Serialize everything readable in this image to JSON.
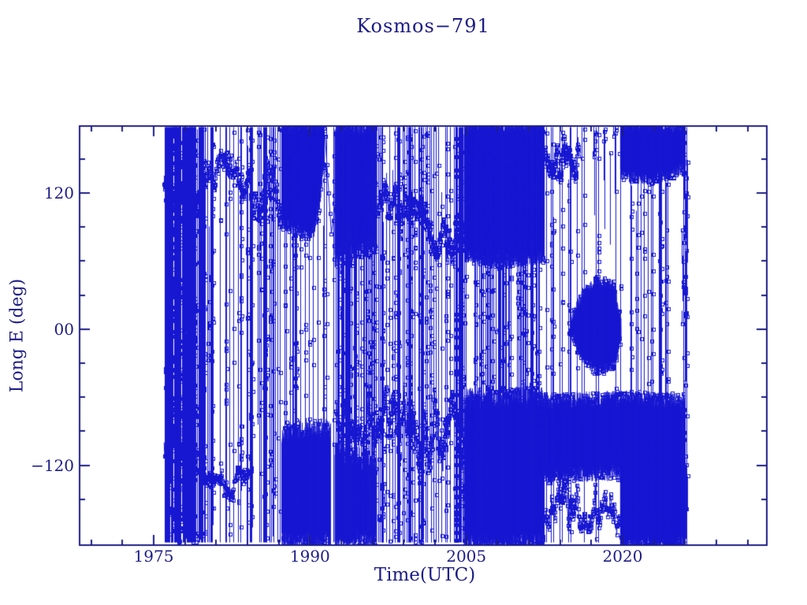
{
  "chart_data": {
    "type": "scatter",
    "title": "Kosmos−791",
    "xlabel": "Time(UTC)",
    "ylabel": "Long E (deg)",
    "xlim": [
      1967.89,
      2033.84
    ],
    "ylim": [
      -190.4,
      179.0
    ],
    "x_major_ticks": [
      {
        "value": 1975,
        "label": "1975"
      },
      {
        "value": 1990,
        "label": "1990"
      },
      {
        "value": 2005,
        "label": "2005"
      },
      {
        "value": 2020,
        "label": "2020"
      }
    ],
    "x_minor_tick_years": [
      1969,
      1972,
      1978,
      1981,
      1984,
      1987,
      1993,
      1996,
      1999,
      2002,
      2008,
      2011,
      2014,
      2017,
      2023,
      2026,
      2029,
      2032
    ],
    "y_major_ticks": [
      {
        "value": 120,
        "label": "120"
      },
      {
        "value": 0,
        "label": "00"
      },
      {
        "value": -120,
        "label": "−120"
      }
    ],
    "y_minor_tick_values": [
      150,
      90,
      60,
      30,
      -30,
      -60,
      -90,
      -150
    ],
    "grid": false,
    "legend": null,
    "colors": {
      "background": "#ffffff",
      "axis": "#1d1d87",
      "data": "#1717d2"
    },
    "marker": {
      "shape": "open-square",
      "size": 4
    },
    "seed": 791,
    "features": [
      {
        "kind": "stripes",
        "desc": "1976-1979.7 rapid drift, dense full-range longitude wraps",
        "t0": 1976.0,
        "t1": 1979.7,
        "n": 85,
        "partial": 0.25
      },
      {
        "kind": "walk",
        "desc": "1976-1979.7 cluster near 112-124E",
        "t0": 1976.0,
        "t1": 1979.7,
        "c0": 124,
        "c1": 112,
        "spread": 16,
        "step": 0.025
      },
      {
        "kind": "walk",
        "desc": "1976-1979.2 cluster near 92-102W",
        "t0": 1976.0,
        "t1": 1979.2,
        "c0": -92,
        "c1": -102,
        "spread": 26,
        "step": 0.025
      },
      {
        "kind": "walk",
        "desc": "1976-1977.6 cluster near 165-172W",
        "t0": 1976.2,
        "t1": 1977.6,
        "c0": -165,
        "c1": -172,
        "spread": 10,
        "step": 0.03
      },
      {
        "kind": "stripes",
        "desc": "1979.7-1984.3 slow wrap stripes",
        "t0": 1979.7,
        "t1": 1984.3,
        "n": 24,
        "partial": 0.35
      },
      {
        "kind": "walk",
        "desc": "1979.7-1984.3 cluster near 130-142E",
        "t0": 1979.7,
        "t1": 1984.3,
        "c0": 142,
        "c1": 130,
        "spread": 20,
        "step": 0.03
      },
      {
        "kind": "walk",
        "desc": "1980-1984.3 cluster near 132-138W",
        "t0": 1979.9,
        "t1": 1984.3,
        "c0": -132,
        "c1": -138,
        "spread": 16,
        "step": 0.035
      },
      {
        "kind": "stripes",
        "desc": "1984.3-1987.3 wrap stripes",
        "t0": 1984.3,
        "t1": 1987.3,
        "n": 20,
        "partial": 0.35
      },
      {
        "kind": "walk",
        "desc": "1984.3-1987.3 scattered 90-150E",
        "t0": 1984.3,
        "t1": 1987.3,
        "c0": 122,
        "c1": 112,
        "spread": 30,
        "step": 0.03
      },
      {
        "kind": "fill",
        "desc": "1987.3-1991.35 libration fill 85E-180E narrowing to V",
        "env": [
          [
            1987.3,
            95,
            178
          ],
          [
            1989.2,
            87,
            178
          ],
          [
            1990.4,
            86,
            178
          ],
          [
            1991.0,
            118,
            178
          ],
          [
            1991.35,
            148,
            178
          ]
        ],
        "step": 0.02,
        "jitter": 7
      },
      {
        "kind": "fill",
        "desc": "1987.3-1992 libration fill 185W-88W",
        "env": [
          [
            1987.3,
            -188,
            -92
          ],
          [
            1990.0,
            -188,
            -86
          ],
          [
            1992.0,
            -188,
            -88
          ]
        ],
        "step": 0.028,
        "jitter": 9
      },
      {
        "kind": "stripes",
        "desc": "1987.3-1991.3 wrap stripes",
        "t0": 1987.3,
        "t1": 1991.3,
        "n": 16,
        "partial": 0.3
      },
      {
        "kind": "stripes",
        "desc": "1991.35-1992.3 quiet period, few wraps",
        "t0": 1991.35,
        "t1": 1992.3,
        "n": 4,
        "partial": 0.5
      },
      {
        "kind": "curve",
        "desc": "1991.4-1993 drift dip to 84E then recovery to 145E",
        "pts": [
          [
            1991.45,
            170
          ],
          [
            1991.8,
            120
          ],
          [
            1992.05,
            84
          ],
          [
            1992.4,
            108
          ],
          [
            1992.7,
            128
          ],
          [
            1992.95,
            145
          ]
        ]
      },
      {
        "kind": "fill",
        "desc": "1992.4-1996.4 libration fill 62E-180E",
        "env": [
          [
            1992.4,
            62,
            178
          ],
          [
            1994.5,
            70,
            178
          ],
          [
            1996.4,
            76,
            178
          ]
        ],
        "step": 0.02,
        "jitter": 8
      },
      {
        "kind": "fill",
        "desc": "1992.4-1996.4 band 185W-108W",
        "env": [
          [
            1992.4,
            -188,
            -108
          ],
          [
            1996.4,
            -188,
            -118
          ]
        ],
        "step": 0.03,
        "jitter": 10
      },
      {
        "kind": "walk",
        "desc": "1992.5-1996.4 scattered 45W-105W",
        "t0": 1992.5,
        "t1": 1996.4,
        "c0": -70,
        "c1": -80,
        "spread": 30,
        "step": 0.035
      },
      {
        "kind": "stripes",
        "desc": "1992.4-1996.4 dense wrap stripes",
        "t0": 1992.4,
        "t1": 1996.4,
        "n": 52,
        "partial": 0.25
      },
      {
        "kind": "walk",
        "desc": "1996.4-2004.8 band drifting 116E to 70E",
        "t0": 1996.4,
        "t1": 2004.8,
        "c0": 116,
        "c1": 70,
        "spread": 24,
        "step": 0.025
      },
      {
        "kind": "walk",
        "desc": "1996.4-2004.8 scattered 40W-130W",
        "t0": 1996.4,
        "t1": 2004.8,
        "c0": -78,
        "c1": -95,
        "spread": 38,
        "step": 0.025
      },
      {
        "kind": "stripes",
        "desc": "1996.4-2004.8 wrap stripes",
        "t0": 1996.4,
        "t1": 2004.8,
        "n": 75,
        "partial": 0.3
      },
      {
        "kind": "fill",
        "desc": "2004.8-2012.5 solid libration fill 60E-180E",
        "env": [
          [
            2004.8,
            66,
            178
          ],
          [
            2008.5,
            60,
            178
          ],
          [
            2012.5,
            64,
            178
          ]
        ],
        "step": 0.018,
        "jitter": 7
      },
      {
        "kind": "fill",
        "desc": "2004.8-2012.5 fill 185W-60W",
        "env": [
          [
            2004.8,
            -188,
            -62
          ],
          [
            2012.5,
            -188,
            -60
          ]
        ],
        "step": 0.024,
        "jitter": 10
      },
      {
        "kind": "stripes",
        "desc": "2004.8-2012.5 dense wrap stripes",
        "t0": 2004.8,
        "t1": 2012.5,
        "n": 65,
        "partial": 0.25
      },
      {
        "kind": "walk",
        "desc": "2012.5-2015.8 cluster 130E-180E",
        "t0": 2012.5,
        "t1": 2015.8,
        "c0": 158,
        "c1": 148,
        "spread": 22,
        "step": 0.02
      },
      {
        "kind": "fill",
        "desc": "2012.5-2019.8 solid band 128W-62W",
        "env": [
          [
            2012.5,
            -128,
            -64
          ],
          [
            2019.8,
            -126,
            -62
          ]
        ],
        "step": 0.022,
        "jitter": 8
      },
      {
        "kind": "walk",
        "desc": "2012.6-2019.8 scattered 135W-180W",
        "t0": 2012.6,
        "t1": 2019.8,
        "c0": -155,
        "c1": -160,
        "spread": 22,
        "step": 0.03
      },
      {
        "kind": "stripes",
        "desc": "2012.5-2019.8 occasional wraps",
        "t0": 2012.5,
        "t1": 2019.8,
        "n": 20,
        "partial": 0.45
      },
      {
        "kind": "fill",
        "desc": "2015-2019.9 libration lobe about 0 deg (eye shape)",
        "env": [
          [
            2015.0,
            -4,
            8
          ],
          [
            2016.2,
            -26,
            32
          ],
          [
            2017.6,
            -37,
            42
          ],
          [
            2019.2,
            -31,
            38
          ],
          [
            2019.85,
            -6,
            5
          ]
        ],
        "step": 0.024,
        "jitter": 5
      },
      {
        "kind": "scatter",
        "desc": "2017-2019.6 isolated points 150E-178E",
        "t0": 2016.9,
        "t1": 2019.6,
        "lo": 150,
        "hi": 178,
        "n": 14
      },
      {
        "kind": "fill",
        "desc": "2019.8-2026 solid band 132E-180E",
        "env": [
          [
            2019.8,
            138,
            178
          ],
          [
            2022.5,
            132,
            178
          ],
          [
            2026.0,
            142,
            178
          ]
        ],
        "step": 0.02,
        "jitter": 6
      },
      {
        "kind": "fill",
        "desc": "2019.8-2026 solid fill 185W-62W",
        "env": [
          [
            2019.8,
            -188,
            -62
          ],
          [
            2026.0,
            -188,
            -64
          ]
        ],
        "step": 0.02,
        "jitter": 8
      },
      {
        "kind": "stripes",
        "desc": "2019.8-2024.8 wrap stripes",
        "t0": 2019.8,
        "t1": 2024.8,
        "n": 16,
        "partial": 0.4
      },
      {
        "kind": "scatter",
        "desc": "2025.6-2026.2 final sparse column of points",
        "t0": 2025.6,
        "t1": 2026.2,
        "lo": -165,
        "hi": 175,
        "n": 26
      },
      {
        "kind": "stripes",
        "desc": "2025.7-2026.15 final wraps",
        "t0": 2025.7,
        "t1": 2026.15,
        "n": 5,
        "partial": 0.6
      }
    ]
  }
}
